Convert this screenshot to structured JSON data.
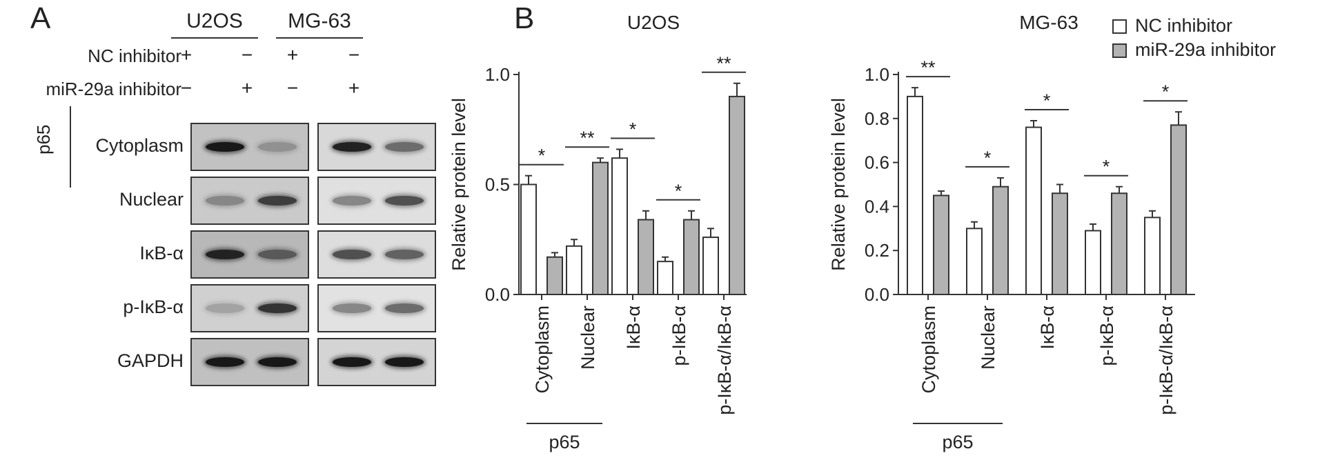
{
  "panel_a": {
    "letter": "A",
    "cell_lines": [
      "U2OS",
      "MG-63"
    ],
    "treatment_rows": [
      {
        "label": "NC inhibitor",
        "signs": [
          "+",
          "−",
          "+",
          "−"
        ]
      },
      {
        "label": "miR-29a inhibitor",
        "signs": [
          "−",
          "+",
          "−",
          "+"
        ]
      }
    ],
    "group_label": "p65",
    "bands": [
      {
        "label": "Cytoplasm",
        "intensity": [
          0.95,
          0.3,
          0.9,
          0.5
        ],
        "bg": [
          "#c2c2c2",
          "#d8d8d8"
        ]
      },
      {
        "label": "Nuclear",
        "intensity": [
          0.35,
          0.75,
          0.35,
          0.65
        ],
        "bg": [
          "#cacaca",
          "#e0e0e0"
        ]
      },
      {
        "label": "IκB-α",
        "intensity": [
          0.9,
          0.6,
          0.65,
          0.55
        ],
        "bg": [
          "#b8b8b8",
          "#dddddd"
        ]
      },
      {
        "label": "p-IκB-α",
        "intensity": [
          0.2,
          0.8,
          0.35,
          0.5
        ],
        "bg": [
          "#d0d0d0",
          "#e2e2e2"
        ]
      },
      {
        "label": "GAPDH",
        "intensity": [
          0.95,
          0.95,
          0.95,
          0.95
        ],
        "bg": [
          "#c0c0c0",
          "#d4d4d4"
        ]
      }
    ]
  },
  "panel_b": {
    "letter": "B",
    "legend": [
      "NC inhibitor",
      "miR-29a inhibitor"
    ],
    "colors": {
      "nc": "#ffffff",
      "mir": "#b3b3b3",
      "stroke": "#333333"
    }
  },
  "chart_data": [
    {
      "type": "bar",
      "title": "U2OS",
      "ylabel": "Relative protein level",
      "xlabel": "",
      "ylim": [
        0,
        1.0
      ],
      "yticks": [
        "0.0",
        "0.5",
        "1.0"
      ],
      "ytick_values": [
        0,
        0.5,
        1.0
      ],
      "categories": [
        "Cytoplasm",
        "Nuclear",
        "IκB-α",
        "p-IκB-α",
        "p-IκB-α/IκB-α"
      ],
      "group_label": "p65",
      "series": [
        {
          "name": "NC inhibitor",
          "values": [
            0.5,
            0.22,
            0.62,
            0.15,
            0.26
          ],
          "errors": [
            0.04,
            0.03,
            0.04,
            0.02,
            0.04
          ]
        },
        {
          "name": "miR-29a inhibitor",
          "values": [
            0.17,
            0.6,
            0.34,
            0.34,
            0.9
          ],
          "errors": [
            0.02,
            0.02,
            0.04,
            0.04,
            0.06
          ]
        }
      ],
      "significance": [
        "*",
        "**",
        "*",
        "*",
        "**"
      ]
    },
    {
      "type": "bar",
      "title": "MG-63",
      "ylabel": "Relative protein level",
      "xlabel": "",
      "ylim": [
        0,
        1.0
      ],
      "yticks": [
        "0.0",
        "0.2",
        "0.4",
        "0.6",
        "0.8",
        "1.0"
      ],
      "ytick_values": [
        0,
        0.2,
        0.4,
        0.6,
        0.8,
        1.0
      ],
      "categories": [
        "Cytoplasm",
        "Nuclear",
        "IκB-α",
        "p-IκB-α",
        "p-IκB-α/IκB-α"
      ],
      "group_label": "p65",
      "series": [
        {
          "name": "NC inhibitor",
          "values": [
            0.9,
            0.3,
            0.76,
            0.29,
            0.35
          ],
          "errors": [
            0.04,
            0.03,
            0.03,
            0.03,
            0.03
          ]
        },
        {
          "name": "miR-29a inhibitor",
          "values": [
            0.45,
            0.49,
            0.46,
            0.46,
            0.77
          ],
          "errors": [
            0.02,
            0.04,
            0.04,
            0.03,
            0.06
          ]
        }
      ],
      "significance": [
        "**",
        "*",
        "*",
        "*",
        "*"
      ]
    }
  ]
}
